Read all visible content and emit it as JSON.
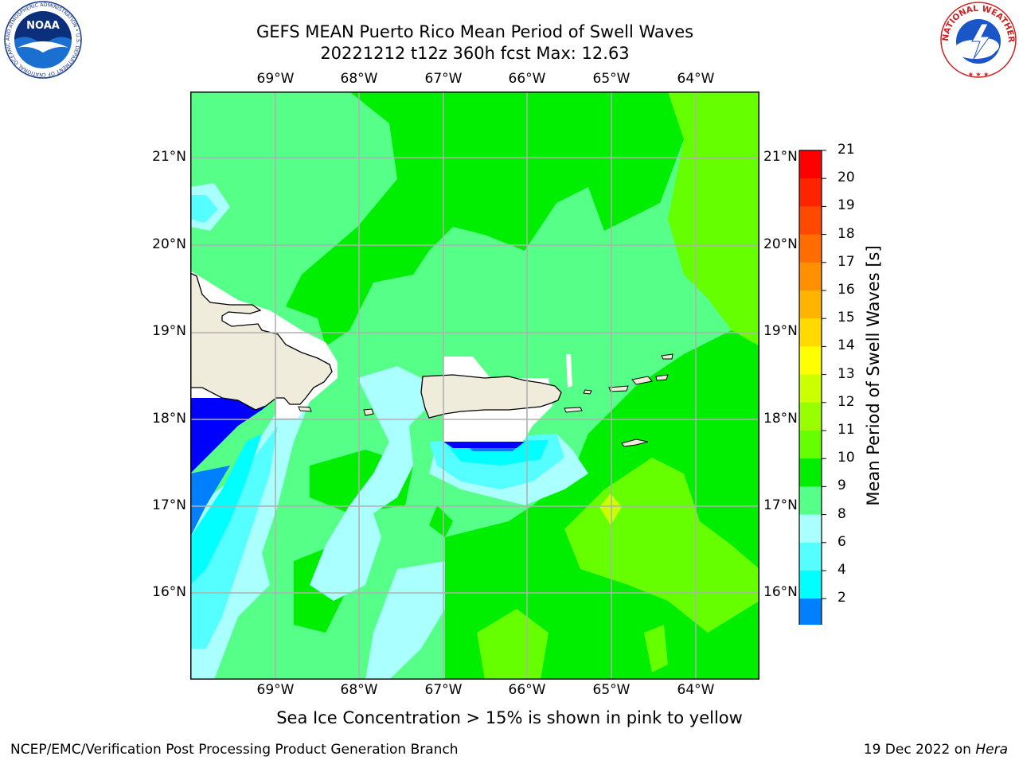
{
  "title_line1": "GEFS MEAN Puerto Rico Mean Period of Swell Waves",
  "title_line2": "20221212 t12z 360h fcst   Max: 12.63",
  "lon_labels": [
    "69°W",
    "68°W",
    "67°W",
    "66°W",
    "65°W",
    "64°W"
  ],
  "lat_labels": [
    "21°N",
    "20°N",
    "19°N",
    "18°N",
    "17°N",
    "16°N"
  ],
  "colorbar": {
    "title": "Mean Period of Swell Waves [s]",
    "ticks": [
      "21",
      "20",
      "19",
      "18",
      "17",
      "16",
      "15",
      "14",
      "13",
      "12",
      "11",
      "10",
      "9",
      "8",
      "6",
      "4",
      "2"
    ],
    "colors": [
      "#ff0000",
      "#ff2400",
      "#ff4800",
      "#ff6d00",
      "#ff9100",
      "#ffb500",
      "#ffda00",
      "#ffff00",
      "#ccff00",
      "#99ff00",
      "#66ff00",
      "#00ee00",
      "#55ff88",
      "#aaffff",
      "#55ffff",
      "#00ffff",
      "#0080ff",
      "#0000ff"
    ],
    "extend": "min"
  },
  "sea_ice_note": "Sea Ice Concentration > 15% is shown in pink to yellow",
  "footer": {
    "left": "NCEP/EMC/Verification Post Processing Product Generation Branch",
    "date": "19 Dec 2022 on ",
    "machine": "Hera"
  },
  "logos": {
    "noaa_text": "NOAA",
    "noaa_ring": "NATIONAL OCEANIC AND ATMOSPHERIC ADMINISTRATION • U.S. DEPARTMENT OF COMMERCE",
    "nws_ring": "NATIONAL WEATHER SERVICE"
  }
}
